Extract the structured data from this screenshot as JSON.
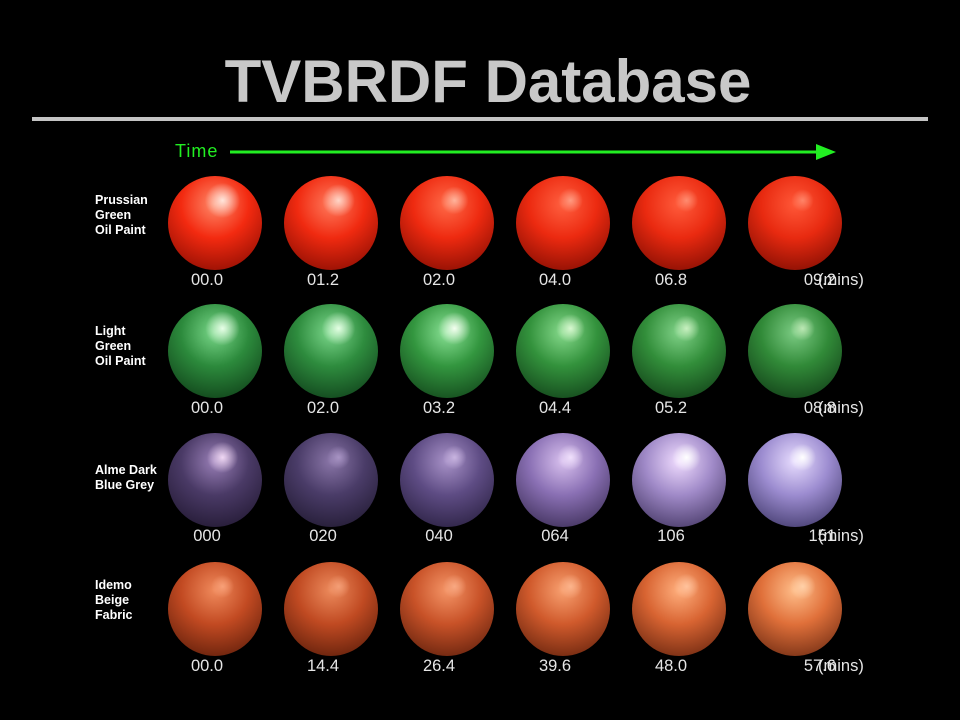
{
  "title": "TVBRDF Database",
  "time_axis": {
    "label": "Time",
    "color": "#22ee22"
  },
  "unit_label": "(mins)",
  "rows": [
    {
      "label_lines": [
        "Prussian",
        "Green",
        "Oil Paint"
      ],
      "times": [
        "00.0",
        "01.2",
        "02.0",
        "04.0",
        "06.8",
        "09.2"
      ],
      "spheres": [
        {
          "light": "#ff8a6a",
          "mid": "#f32a10",
          "dark": "#7a0800",
          "spec": "#ffe6dc",
          "spec_level": 0.95
        },
        {
          "light": "#ff7a5c",
          "mid": "#f02a10",
          "dark": "#780800",
          "spec": "#ffd6c8",
          "spec_level": 0.8
        },
        {
          "light": "#ff6a48",
          "mid": "#ee2a10",
          "dark": "#740800",
          "spec": "#ffb49c",
          "spec_level": 0.5
        },
        {
          "light": "#ff6040",
          "mid": "#ec2a10",
          "dark": "#720800",
          "spec": "#ff9a80",
          "spec_level": 0.3
        },
        {
          "light": "#ff5c3c",
          "mid": "#ea2a10",
          "dark": "#700800",
          "spec": "#ff8c70",
          "spec_level": 0.2
        },
        {
          "light": "#ff5838",
          "mid": "#e82a10",
          "dark": "#6e0800",
          "spec": "#ff8468",
          "spec_level": 0.15
        }
      ]
    },
    {
      "label_lines": [
        "Light",
        "Green",
        "Oil Paint"
      ],
      "times": [
        "00.0",
        "02.0",
        "03.2",
        "04.4",
        "05.2",
        "08.8"
      ],
      "spheres": [
        {
          "light": "#7ad88a",
          "mid": "#2c8a3c",
          "dark": "#0a3212",
          "spec": "#e8ffe8",
          "spec_level": 0.9
        },
        {
          "light": "#7cd88c",
          "mid": "#2e8c3e",
          "dark": "#0a3214",
          "spec": "#e4ffe4",
          "spec_level": 0.85
        },
        {
          "light": "#8ae296",
          "mid": "#33963f",
          "dark": "#0c3614",
          "spec": "#f4fff0",
          "spec_level": 0.8
        },
        {
          "light": "#86da8c",
          "mid": "#33923c",
          "dark": "#0c3414",
          "spec": "#d8f8d0",
          "spec_level": 0.55
        },
        {
          "light": "#80d288",
          "mid": "#328e3a",
          "dark": "#0c3212",
          "spec": "#c8f0c0",
          "spec_level": 0.4
        },
        {
          "light": "#7ccc84",
          "mid": "#318a38",
          "dark": "#0c3012",
          "spec": "#bce8b4",
          "spec_level": 0.3
        }
      ]
    },
    {
      "label_lines": [
        "Alme Dark",
        "Blue Grey"
      ],
      "times": [
        "000",
        "020",
        "040",
        "064",
        "106",
        "151"
      ],
      "spheres": [
        {
          "light": "#9a80b8",
          "mid": "#4a3a66",
          "dark": "#1a1228",
          "spec": "#f0d8f4",
          "spec_level": 0.7
        },
        {
          "light": "#8a76a8",
          "mid": "#4a3c68",
          "dark": "#1a1428",
          "spec": "#a894c4",
          "spec_level": 0.2
        },
        {
          "light": "#a892c8",
          "mid": "#5e4c84",
          "dark": "#201834",
          "spec": "#c8b4e0",
          "spec_level": 0.25
        },
        {
          "light": "#d8c0ee",
          "mid": "#8a70b4",
          "dark": "#2e2246",
          "spec": "#f0e0fc",
          "spec_level": 0.4
        },
        {
          "light": "#f0dcff",
          "mid": "#a08ac8",
          "dark": "#342852",
          "spec": "#ffffff",
          "spec_level": 0.55
        },
        {
          "light": "#e8ddff",
          "mid": "#9c8cd0",
          "dark": "#302a58",
          "spec": "#ffffff",
          "spec_level": 0.45
        }
      ]
    },
    {
      "label_lines": [
        "Idemo",
        "Beige",
        "Fabric"
      ],
      "times": [
        "00.0",
        "14.4",
        "26.4",
        "39.6",
        "48.0",
        "57.6"
      ],
      "spheres": [
        {
          "light": "#f08a5c",
          "mid": "#c24a22",
          "dark": "#4e1606",
          "spec": "#f8a078",
          "spec_level": 0.2
        },
        {
          "light": "#ec8a5c",
          "mid": "#c04a22",
          "dark": "#4c1606",
          "spec": "#f49e76",
          "spec_level": 0.2
        },
        {
          "light": "#f49466",
          "mid": "#c85228",
          "dark": "#501808",
          "spec": "#f8a882",
          "spec_level": 0.25
        },
        {
          "light": "#f8a070",
          "mid": "#d05a2c",
          "dark": "#541a08",
          "spec": "#fcb48c",
          "spec_level": 0.3
        },
        {
          "light": "#ffae7c",
          "mid": "#d86432",
          "dark": "#581c0a",
          "spec": "#ffc29c",
          "spec_level": 0.35
        },
        {
          "light": "#ffbe8a",
          "mid": "#e0703a",
          "dark": "#5c200c",
          "spec": "#ffd0a8",
          "spec_level": 0.4
        }
      ]
    }
  ]
}
